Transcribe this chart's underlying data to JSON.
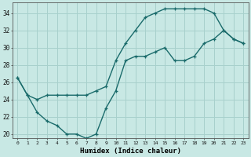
{
  "xlabel": "Humidex (Indice chaleur)",
  "xlim": [
    -0.5,
    23.5
  ],
  "ylim": [
    19.5,
    35.2
  ],
  "xticks": [
    0,
    1,
    2,
    3,
    4,
    5,
    6,
    7,
    8,
    9,
    10,
    11,
    12,
    13,
    14,
    15,
    16,
    17,
    18,
    19,
    20,
    21,
    22,
    23
  ],
  "yticks": [
    20,
    22,
    24,
    26,
    28,
    30,
    32,
    34
  ],
  "bg_color": "#c8e8e4",
  "line_color": "#1a6b6b",
  "grid_color": "#a8d0cc",
  "line1_x": [
    0,
    1,
    2,
    3,
    4,
    5,
    6,
    7,
    8,
    9,
    10,
    11,
    12,
    13,
    14,
    15,
    16,
    17,
    18,
    19,
    20,
    21,
    22,
    23
  ],
  "line1_y": [
    26.5,
    24.5,
    24.0,
    24.5,
    24.5,
    24.5,
    24.5,
    24.5,
    25.0,
    25.5,
    28.5,
    30.5,
    32.0,
    33.5,
    34.0,
    34.5,
    34.5,
    34.5,
    34.5,
    34.5,
    34.0,
    32.0,
    31.0,
    30.5
  ],
  "line2_x": [
    0,
    1,
    2,
    3,
    4,
    5,
    6,
    7,
    8,
    9,
    10,
    11,
    12,
    13,
    14,
    15,
    16,
    17,
    18,
    19,
    20,
    21,
    22,
    23
  ],
  "line2_y": [
    26.5,
    24.5,
    22.5,
    21.5,
    21.0,
    20.0,
    20.0,
    19.5,
    20.0,
    23.0,
    25.0,
    28.5,
    29.0,
    29.0,
    29.5,
    30.0,
    28.5,
    28.5,
    29.0,
    30.5,
    31.0,
    32.0,
    31.0,
    30.5
  ]
}
